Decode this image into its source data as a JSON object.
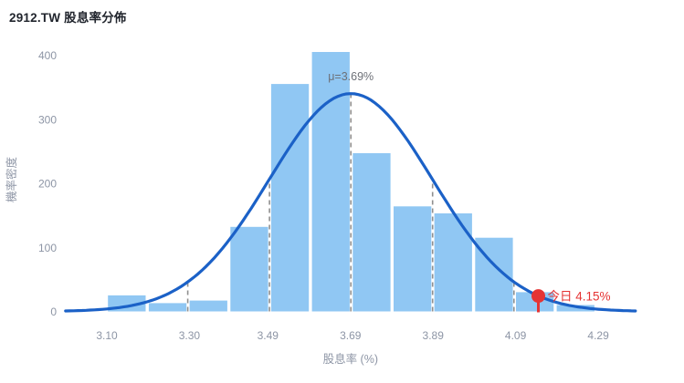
{
  "header": {
    "title": "2912.TW 股息率分佈"
  },
  "chart_data": {
    "type": "histogram-with-normal-curve",
    "title": "2912.TW 股息率分佈",
    "xlabel": "股息率 (%)",
    "ylabel": "機率密度",
    "x_tick_labels": [
      "3.10",
      "3.30",
      "3.49",
      "3.69",
      "3.89",
      "4.09",
      "4.29"
    ],
    "x_tick_values": [
      3.1,
      3.3,
      3.49,
      3.69,
      3.89,
      4.09,
      4.29
    ],
    "y_ticks": [
      0,
      100,
      200,
      300,
      400
    ],
    "xlim": [
      3.0,
      4.4
    ],
    "ylim": [
      0,
      430
    ],
    "grid": "off",
    "legend": "none",
    "bins": {
      "start": 3.099,
      "width": 0.0988,
      "counts": [
        25,
        13,
        17,
        132,
        355,
        405,
        247,
        164,
        153,
        115,
        30,
        10
      ]
    },
    "normal_curve": {
      "mean": 3.691,
      "sigma": 0.1975,
      "peak": 340,
      "x_range": [
        3.0,
        4.38
      ]
    },
    "sigma_guides": [
      3.296,
      3.494,
      3.691,
      3.889,
      4.086
    ],
    "annotations": {
      "mu_label": "μ=3.69%",
      "today_label": "今日",
      "today_value": "4.15%",
      "today_x": 4.145,
      "today_y": 24
    },
    "colors": {
      "bar": "#90c7f3",
      "curve": "#1b61c7",
      "guide": "#8f8f8f",
      "tick_text": "#8d95a5",
      "mu_text": "#6d7077",
      "today": "#e53434",
      "title_text": "#21252d"
    }
  }
}
